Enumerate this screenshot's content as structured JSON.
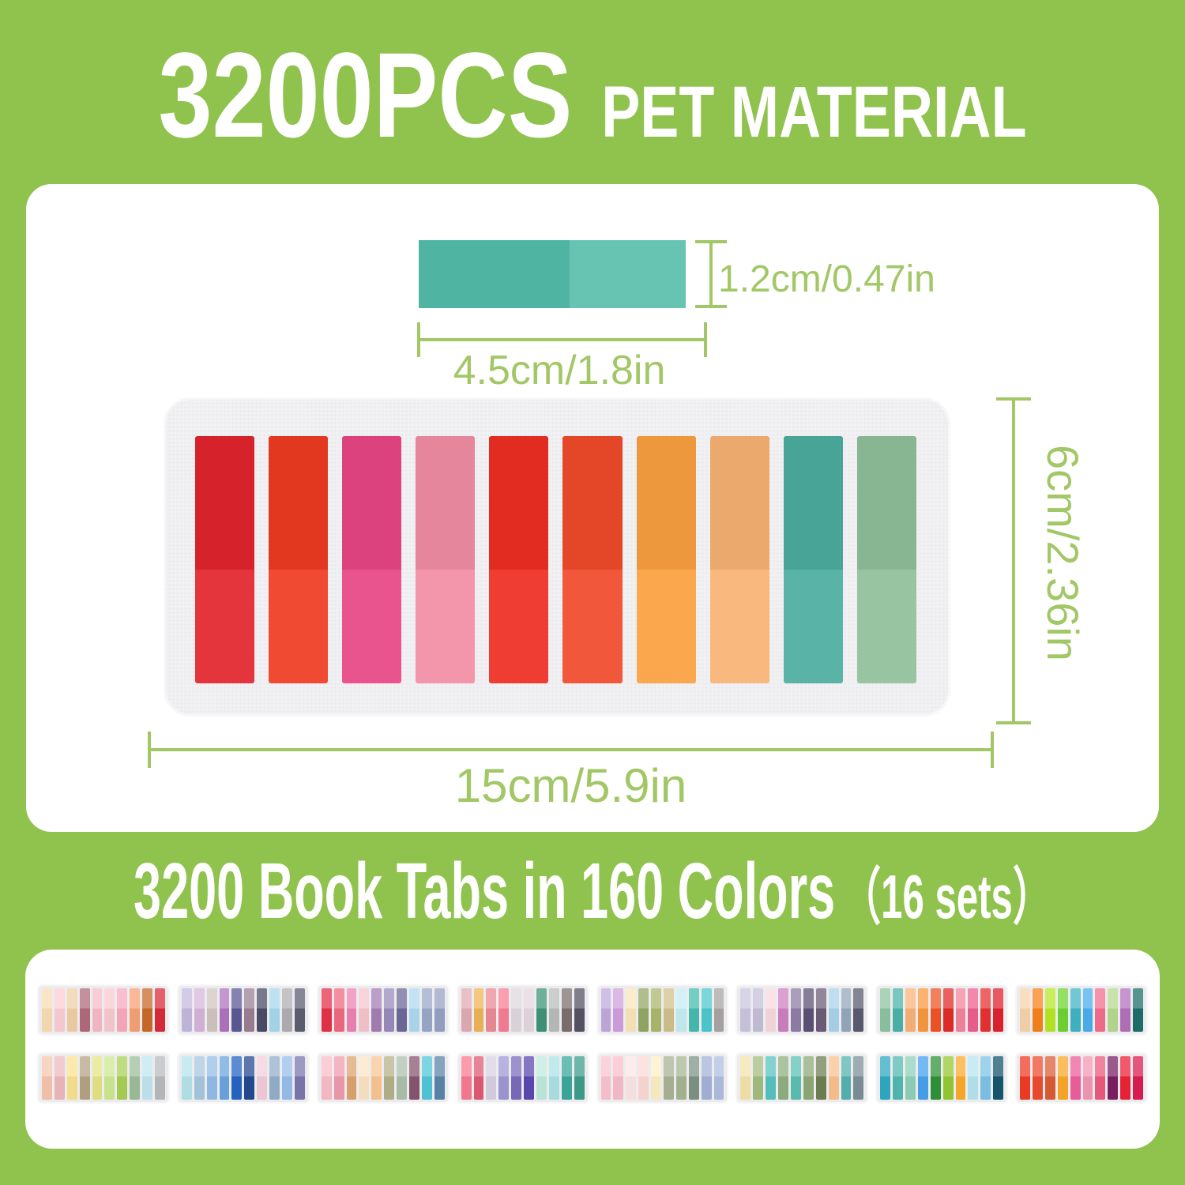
{
  "title": {
    "main": "3200PCS",
    "sub": "PET MATERIAL"
  },
  "subtitle": {
    "main": "3200 Book Tabs in 160 Colors",
    "suffix": "（16 sets）"
  },
  "colors": {
    "background": "#90c24e",
    "panel": "#ffffff",
    "dimension": "#a2c766",
    "card_bg": "#f1f0f2",
    "mini_card_bg": "#ececee"
  },
  "sample_tab": {
    "height_label": "1.2cm/0.47in",
    "width_label": "4.5cm/1.8in",
    "left_color": "#4fb5a2",
    "right_color": "#68c4b2"
  },
  "sheet": {
    "height_label": "6cm/2.36in",
    "width_label": "15cm/5.9in",
    "tab_colors": [
      "#e2242d",
      "#ef3b22",
      "#e84584",
      "#f28da4",
      "#ee2d23",
      "#f04a2a",
      "#faa03f",
      "#f8b273",
      "#4bad9f",
      "#8fbf9a"
    ]
  },
  "sets": [
    [
      "#f9ddb4",
      "#fbcdd5",
      "#f1cfa6",
      "#b26b7c",
      "#f7bcc7",
      "#facad1",
      "#f9aabd",
      "#f7a276",
      "#cb6a2a",
      "#dc2a3c"
    ],
    [
      "#c4badf",
      "#d7b5dc",
      "#d0c6bf",
      "#b273c1",
      "#5b5a95",
      "#9c8095",
      "#4a4d66",
      "#a6d9ed",
      "#b1afb3",
      "#5e5f73"
    ],
    [
      "#e63148",
      "#f16a81",
      "#ef82b2",
      "#f7c5cd",
      "#a67fb6",
      "#9a8cbf",
      "#6e6a9a",
      "#aedaf0",
      "#9ba9ca",
      "#97a3c3"
    ],
    [
      "#e3abb5",
      "#f0b557",
      "#ec8a96",
      "#f87e95",
      "#dfd8de",
      "#e5d7df",
      "#3f9578",
      "#b8bdbb",
      "#7d706f",
      "#575365"
    ],
    [
      "#c1aadd",
      "#d0a0de",
      "#fae7ba",
      "#94a965",
      "#abb96b",
      "#d0c18c",
      "#c5edf3",
      "#46bdaf",
      "#4dc9ce",
      "#a9a5a3"
    ],
    [
      "#cbc5e1",
      "#c4c0d9",
      "#f7dadf",
      "#ce80c1",
      "#8f7ea7",
      "#5d5276",
      "#6e5d79",
      "#a9d4eb",
      "#94a9bc",
      "#5b5c6f"
    ],
    [
      "#8dc4a1",
      "#4cb4a9",
      "#f9b378",
      "#fa9940",
      "#ef5527",
      "#e32b29",
      "#f3849c",
      "#ed608f",
      "#e73232",
      "#e1222f"
    ],
    [
      "#f7d4ab",
      "#f8831c",
      "#b6e924",
      "#6fd532",
      "#40b5c5",
      "#4bafef",
      "#f36e8d",
      "#b7da8f",
      "#b472bc",
      "#1e706b"
    ],
    [
      "#f7c5ae",
      "#edbabd",
      "#fae390",
      "#b4a484",
      "#e5e483",
      "#cde990",
      "#a9d055",
      "#9dbe9b",
      "#c1e5f1",
      "#babbbc"
    ],
    [
      "#b4e4eb",
      "#a6c8df",
      "#95bde9",
      "#6ba5e1",
      "#2664c4",
      "#244a8f",
      "#f4cdda",
      "#93afca",
      "#99beeb",
      "#7b78ad"
    ],
    [
      "#fabdc9",
      "#f09bad",
      "#dea46f",
      "#fce4c4",
      "#fac592",
      "#b6b38a",
      "#acc1ac",
      "#875770",
      "#50c7d9",
      "#5c85a9"
    ],
    [
      "#fa7a90",
      "#e15b74",
      "#d8d0e4",
      "#a098d5",
      "#7c6cbe",
      "#5b49b1",
      "#c0eade",
      "#ace3e5",
      "#3ba99c",
      "#3e9e8c"
    ],
    [
      "#fbc3d0",
      "#fabdcb",
      "#fce5e5",
      "#fcdad6",
      "#fbf0c4",
      "#aab395",
      "#a7b694",
      "#7f9484",
      "#a4b3d9",
      "#afbfe0"
    ],
    [
      "#f3e4aa",
      "#a4be7f",
      "#58c4c1",
      "#90af80",
      "#5cc0b4",
      "#8ea978",
      "#6e8053",
      "#f9c28d",
      "#56b3b1",
      "#7d909a"
    ],
    [
      "#30a9c3",
      "#53bab3",
      "#8fd1ba",
      "#47a2f0",
      "#309239",
      "#97c933",
      "#fcab2b",
      "#b5e4f0",
      "#7dc4e6",
      "#16576e"
    ],
    [
      "#f13b25",
      "#f04c32",
      "#de5c36",
      "#faa829",
      "#ee5f9e",
      "#f498b4",
      "#ee5a7d",
      "#7c2065",
      "#ee2339",
      "#db1d51"
    ]
  ]
}
